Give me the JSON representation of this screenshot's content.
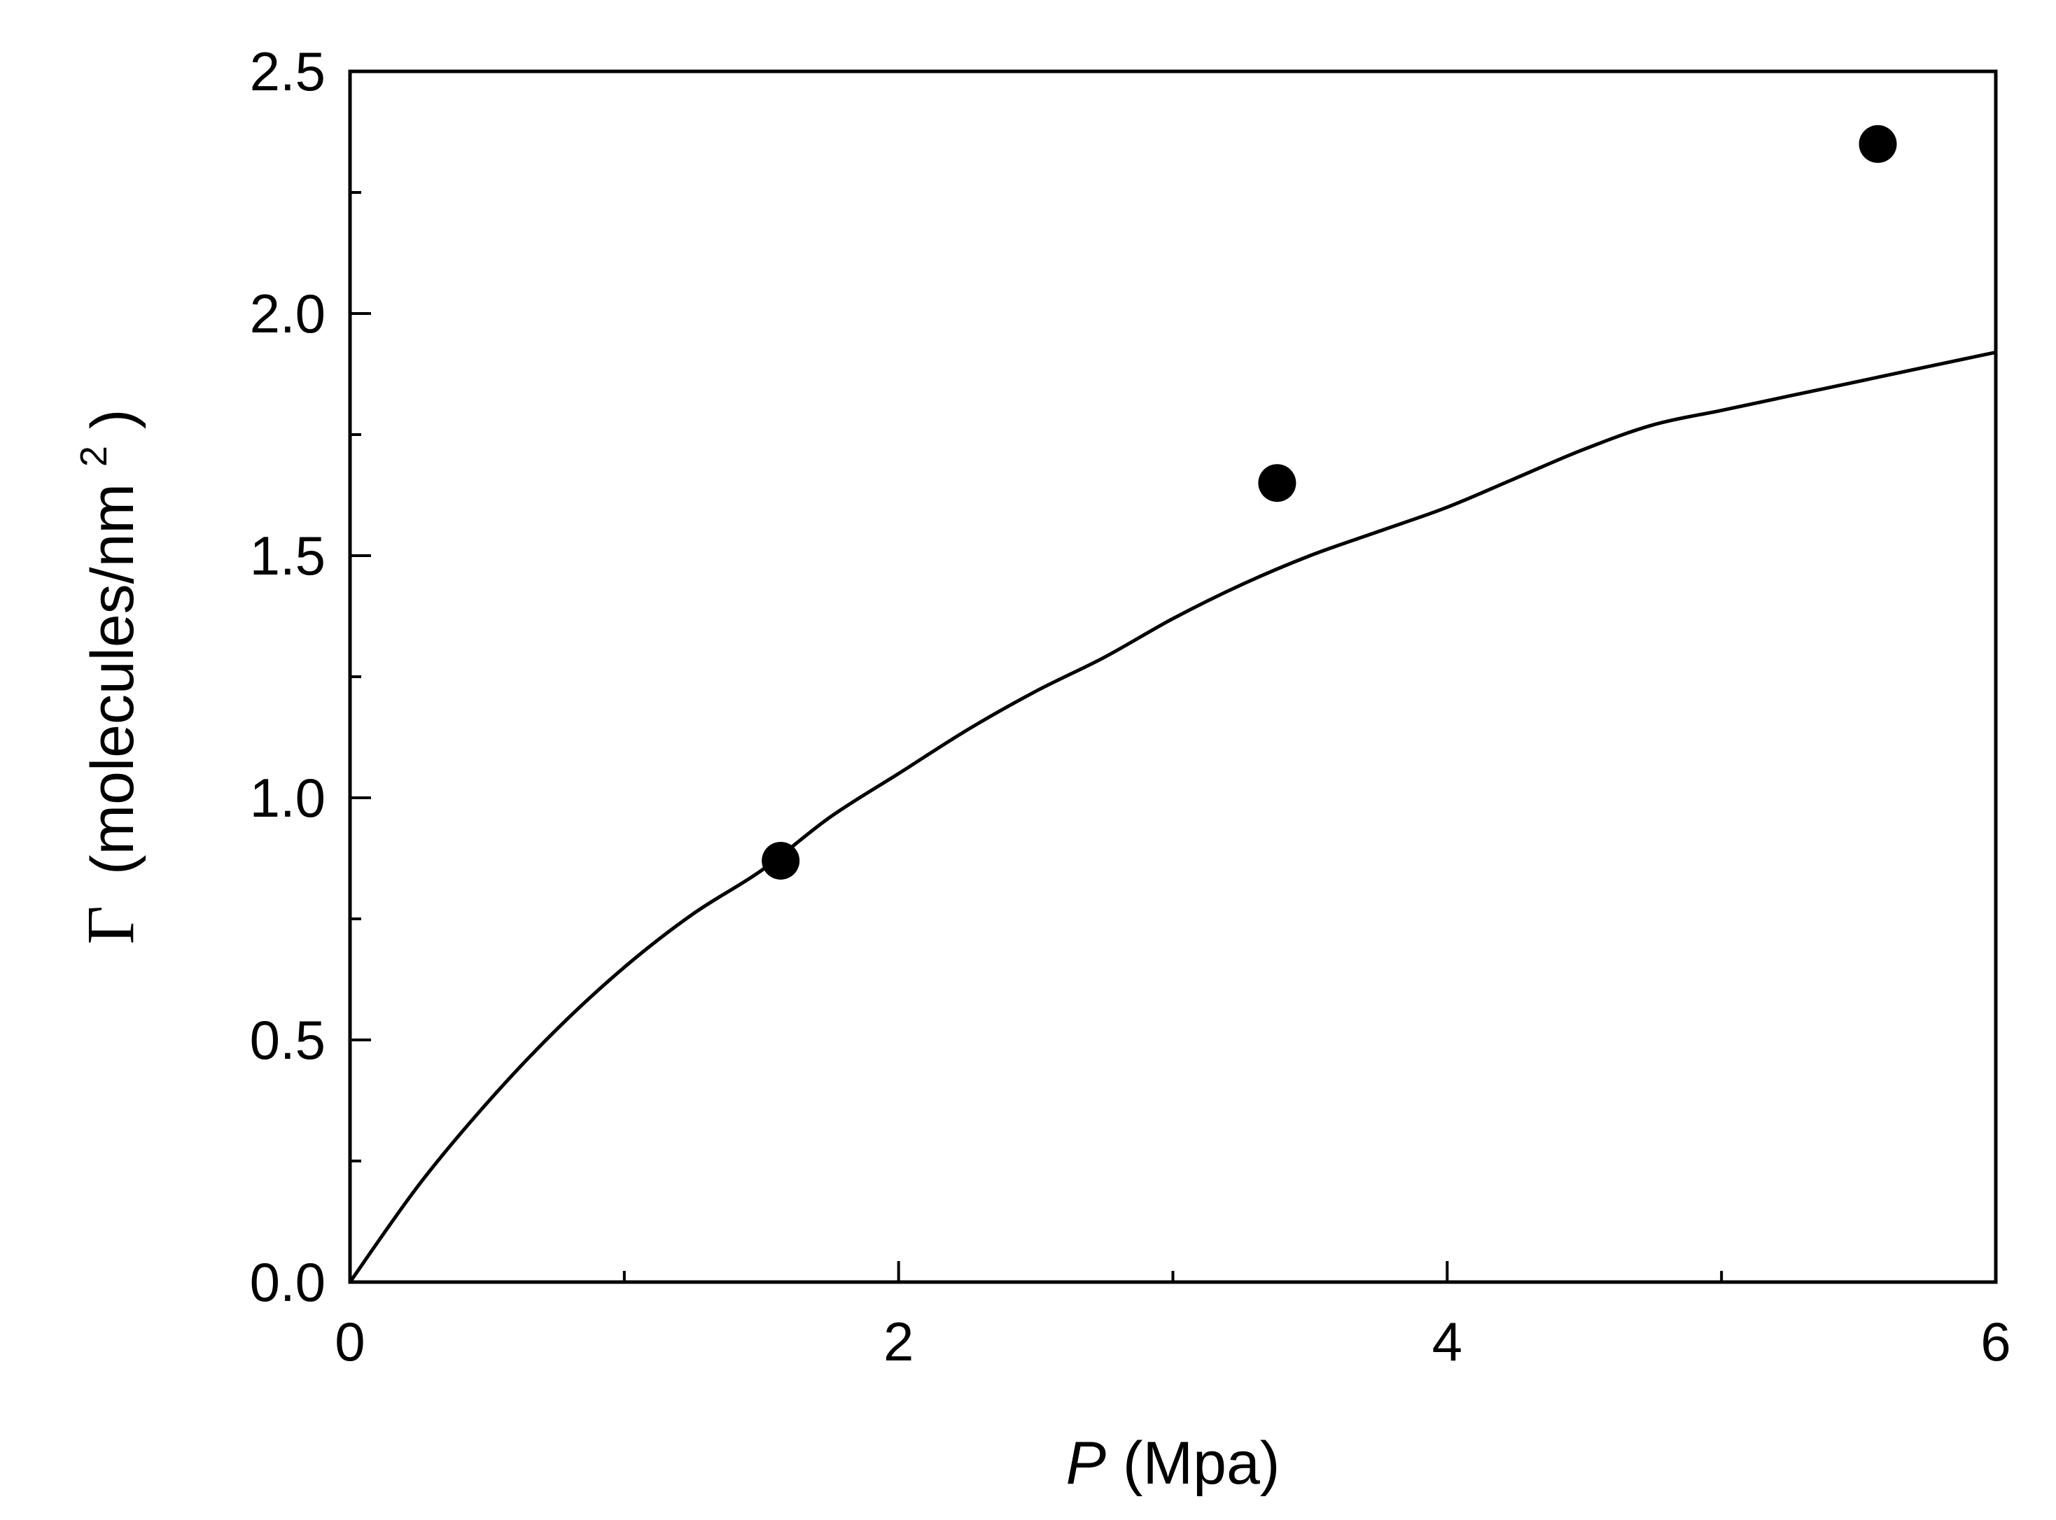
{
  "chart_data": {
    "type": "scatter",
    "title": "",
    "xlabel": {
      "symbol": "P",
      "unit": "(Mpa)"
    },
    "ylabel": {
      "symbol": "Γ",
      "unit": "(molecules/nm",
      "sup": "2",
      "close": ")"
    },
    "xlim": [
      0,
      6
    ],
    "ylim": [
      0,
      2.5
    ],
    "x_ticks": [
      0,
      2,
      4,
      6
    ],
    "x_tick_labels": [
      "0",
      "2",
      "4",
      "6"
    ],
    "x_minor_ticks": [
      1,
      3,
      5
    ],
    "y_ticks": [
      0,
      0.5,
      1.0,
      1.5,
      2.0,
      2.5
    ],
    "y_tick_labels": [
      "0.0",
      "0.5",
      "1.0",
      "1.5",
      "2.0",
      "2.5"
    ],
    "y_minor_ticks": [
      0.25,
      0.75,
      1.25,
      1.75,
      2.25
    ],
    "grid": false,
    "legend": "none",
    "series": [
      {
        "kind": "points",
        "color": "#000000",
        "x": [
          1.57,
          3.38,
          5.57
        ],
        "y": [
          0.87,
          1.65,
          2.35
        ]
      },
      {
        "kind": "line",
        "color": "#000000",
        "x": [
          0,
          0.25,
          0.5,
          0.75,
          1.0,
          1.25,
          1.5,
          1.75,
          2.0,
          2.25,
          2.5,
          2.75,
          3.0,
          3.25,
          3.5,
          3.75,
          4.0,
          4.25,
          4.5,
          4.75,
          5.0,
          5.25,
          5.5,
          5.75,
          6.0
        ],
        "y": [
          0,
          0.2,
          0.37,
          0.52,
          0.65,
          0.76,
          0.85,
          0.96,
          1.05,
          1.14,
          1.22,
          1.29,
          1.37,
          1.44,
          1.5,
          1.55,
          1.6,
          1.66,
          1.72,
          1.77,
          1.8,
          1.83,
          1.86,
          1.89,
          1.92
        ]
      }
    ]
  }
}
